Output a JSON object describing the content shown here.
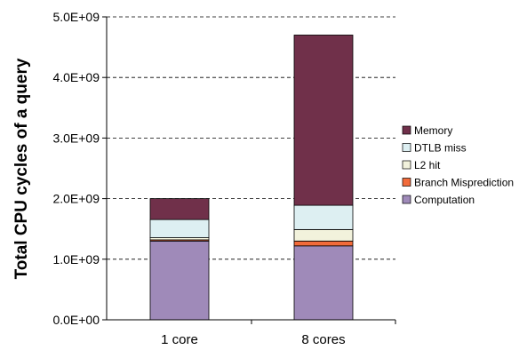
{
  "chart_data": {
    "type": "bar",
    "stacked": true,
    "title": "",
    "xlabel": "",
    "ylabel": "Total CPU cycles of a query",
    "ylim": [
      0,
      5000000000
    ],
    "yticks": [
      0,
      1000000000,
      2000000000,
      3000000000,
      4000000000,
      5000000000
    ],
    "ytick_labels": [
      "0.0E+00",
      "1.0E+09",
      "2.0E+09",
      "3.0E+09",
      "4.0E+09",
      "5.0E+09"
    ],
    "grid": "horizontal dashed",
    "legend_position": "right",
    "categories": [
      "1 core",
      "8 cores"
    ],
    "series": [
      {
        "name": "Computation",
        "color": "#9F8AB9",
        "values": [
          1300000000,
          1220000000
        ]
      },
      {
        "name": "Branch Misprediction",
        "color": "#F26B3A",
        "values": [
          20000000,
          80000000
        ]
      },
      {
        "name": "L2 hit",
        "color": "#F2F2DC",
        "values": [
          35000000,
          190000000
        ]
      },
      {
        "name": "DTLB miss",
        "color": "#DDEFF2",
        "values": [
          300000000,
          400000000
        ]
      },
      {
        "name": "Memory",
        "color": "#70304A",
        "values": [
          345000000,
          2810000000
        ]
      }
    ]
  }
}
